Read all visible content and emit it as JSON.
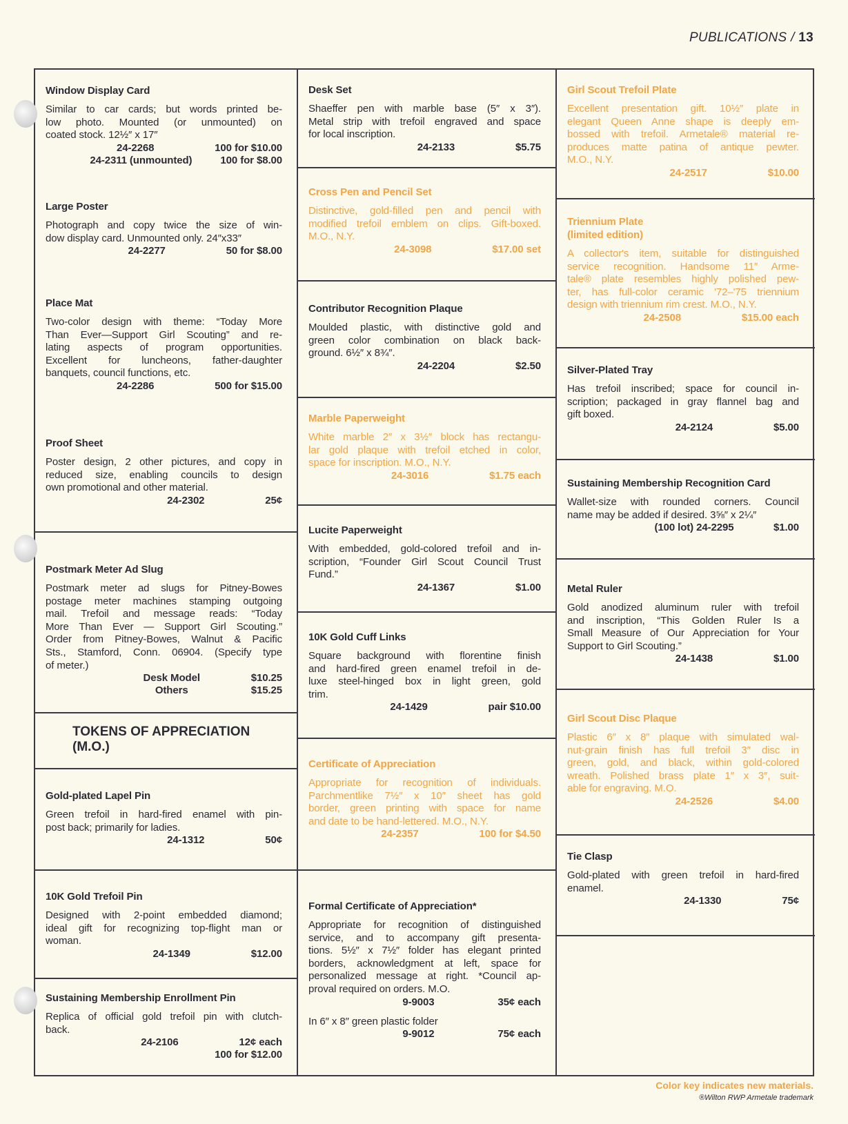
{
  "header": {
    "section": "PUBLICATIONS /",
    "page_number": "13"
  },
  "colors": {
    "text": "#2b2b36",
    "new_material": "#f0a646",
    "background": "#fbf8ec"
  },
  "tokens_heading": "TOKENS OF APPRECIATION\n(M.O.)",
  "columns": [
    [
      {
        "title": "Window Display Card",
        "new": false,
        "lines": [
          "Similar to car cards; but words printed be-",
          "low photo. Mounted (or unmounted) on",
          "coated stock. 12½″ x 17″"
        ],
        "prices": [
          {
            "code": "24-2268",
            "price": "100 for $10.00"
          },
          {
            "code": "24-2311 (unmounted)",
            "price": "100 for $8.00"
          }
        ]
      },
      {
        "title": "Large Poster",
        "new": false,
        "lines": [
          "Photograph and copy twice the size of win-",
          "dow display card. Unmounted only. 24″x33″"
        ],
        "prices": [
          {
            "code": "24-2277",
            "price": "50 for $8.00"
          }
        ]
      },
      {
        "title": "Place Mat",
        "new": false,
        "lines": [
          "Two-color design with theme: “Today More",
          "Than Ever—Support Girl Scouting” and re-",
          "lating aspects of program opportunities.",
          "Excellent for luncheons, father-daughter",
          "banquets, council functions, etc."
        ],
        "prices": [
          {
            "code": "24-2286",
            "price": "500 for $15.00"
          }
        ]
      },
      {
        "title": "Proof Sheet",
        "new": false,
        "lines": [
          "Poster design, 2 other pictures, and copy in",
          "reduced size, enabling councils to design",
          "own promotional and other material."
        ],
        "prices": [
          {
            "code": "24-2302",
            "price": "25¢"
          }
        ]
      },
      {
        "title": "Postmark Meter Ad Slug",
        "new": false,
        "lines": [
          "Postmark meter ad slugs for Pitney-Bowes",
          "postage meter machines stamping outgoing",
          "mail. Trefoil and message reads: “Today",
          "More Than Ever — Support Girl Scouting.”",
          "Order from Pitney-Bowes, Walnut & Pacific",
          "Sts., Stamford, Conn. 06904. (Specify type",
          "of meter.)"
        ],
        "prices": [
          {
            "code": "Desk Model",
            "price": "$10.25"
          },
          {
            "code": "Others",
            "price": "$15.25"
          }
        ]
      },
      {
        "title": "Gold-plated Lapel Pin",
        "new": false,
        "lines": [
          "Green trefoil in hard-fired enamel with pin-",
          "post back; primarily for ladies."
        ],
        "prices": [
          {
            "code": "24-1312",
            "price": "50¢"
          }
        ]
      },
      {
        "title": "10K Gold Trefoil Pin",
        "new": false,
        "lines": [
          "Designed with 2-point embedded diamond;",
          "ideal gift for recognizing top-flight man or",
          "woman."
        ],
        "prices": [
          {
            "code": "24-1349",
            "price": "$12.00"
          }
        ]
      },
      {
        "title": "Sustaining Membership Enrollment Pin",
        "new": false,
        "lines": [
          "Replica of official gold trefoil pin with clutch-",
          "back."
        ],
        "prices": [
          {
            "code": "24-2106",
            "price": "12¢ each"
          },
          {
            "code": "",
            "price": "100 for $12.00"
          }
        ]
      }
    ],
    [
      {
        "title": "Desk Set",
        "new": false,
        "lines": [
          "Shaeffer pen with marble base (5″ x 3″).",
          "Metal strip with trefoil engraved and space",
          "for local inscription."
        ],
        "prices": [
          {
            "code": "24-2133",
            "price": "$5.75"
          }
        ]
      },
      {
        "title": "Cross Pen and Pencil Set",
        "new": true,
        "lines": [
          "Distinctive, gold-filled pen and pencil with",
          "modified trefoil emblem on clips. Gift-boxed.",
          "M.O., N.Y."
        ],
        "prices": [
          {
            "code": "24-3098",
            "price": "$17.00 set"
          }
        ]
      },
      {
        "title": "Contributor Recognition Plaque",
        "new": false,
        "lines": [
          "Moulded plastic, with distinctive gold and",
          "green color combination on black back-",
          "ground. 6½″ x 8¾″."
        ],
        "prices": [
          {
            "code": "24-2204",
            "price": "$2.50"
          }
        ]
      },
      {
        "title": "Marble Paperweight",
        "new": true,
        "lines": [
          "White marble 2″ x 3½″ block has rectangu-",
          "lar gold plaque with trefoil etched in color,",
          "space for inscription. M.O., N.Y."
        ],
        "prices": [
          {
            "code": "24-3016",
            "price": "$1.75 each"
          }
        ]
      },
      {
        "title": "Lucite Paperweight",
        "new": false,
        "lines": [
          "With embedded, gold-colored trefoil and in-",
          "scription, “Founder Girl Scout Council Trust",
          "Fund.”"
        ],
        "prices": [
          {
            "code": "24-1367",
            "price": "$1.00"
          }
        ]
      },
      {
        "title": "10K Gold Cuff Links",
        "new": false,
        "lines": [
          "Square background with florentine finish",
          "and hard-fired green enamel trefoil in de-",
          "luxe steel-hinged box in light green, gold",
          "trim."
        ],
        "prices": [
          {
            "code": "24-1429",
            "price": "pair $10.00"
          }
        ]
      },
      {
        "title": "Certificate of Appreciation",
        "new": true,
        "lines": [
          "Appropriate for recognition of individuals.",
          "Parchmentlike 7½″ x 10″ sheet has gold",
          "border, green printing with space for name",
          "and date to be hand-lettered. M.O., N.Y."
        ],
        "prices": [
          {
            "code": "24-2357",
            "price": "100 for $4.50"
          }
        ]
      },
      {
        "title": "Formal Certificate of Appreciation*",
        "new": false,
        "lines": [
          "Appropriate for recognition of distinguished",
          "service, and to accompany gift presenta-",
          "tions. 5½″ x 7½″ folder has elegant printed",
          "borders, acknowledgment at left, space for",
          "personalized message at right. *Council ap-",
          "proval required on orders. M.O."
        ],
        "prices": [
          {
            "code": "9-9003",
            "price": "35¢ each"
          }
        ],
        "extra": {
          "lines": [
            "In 6″ x 8″ green plastic folder"
          ],
          "prices": [
            {
              "code": "9-9012",
              "price": "75¢ each"
            }
          ]
        }
      }
    ],
    [
      {
        "title": "Girl Scout Trefoil Plate",
        "new": true,
        "lines": [
          "Excellent presentation gift. 10½″ plate in",
          "elegant Queen Anne shape is deeply em-",
          "bossed with trefoil. Armetale® material re-",
          "produces matte patina of antique pewter.",
          "M.O., N.Y."
        ],
        "prices": [
          {
            "code": "24-2517",
            "price": "$10.00"
          }
        ]
      },
      {
        "title": "Triennium Plate\n(limited edition)",
        "new": true,
        "lines": [
          "A collector's item, suitable for distinguished",
          "service recognition. Handsome 11″ Arme-",
          "tale® plate resembles highly polished pew-",
          "ter, has full-color ceramic '72–'75 triennium",
          "design with triennium rim crest. M.O., N.Y."
        ],
        "prices": [
          {
            "code": "24-2508",
            "price": "$15.00 each"
          }
        ]
      },
      {
        "title": "Silver-Plated Tray",
        "new": false,
        "lines": [
          "Has trefoil inscribed; space for council in-",
          "scription; packaged in gray flannel bag and",
          "gift boxed."
        ],
        "prices": [
          {
            "code": "24-2124",
            "price": "$5.00"
          }
        ]
      },
      {
        "title": "Sustaining Membership Recognition Card",
        "new": false,
        "lines": [
          "Wallet-size with rounded corners. Council",
          "name may be added if desired. 3⅝″ x 2¼″"
        ],
        "prices": [
          {
            "code": "(100 lot) 24-2295",
            "price": "$1.00"
          }
        ]
      },
      {
        "title": "Metal Ruler",
        "new": false,
        "lines": [
          "Gold anodized aluminum ruler with trefoil",
          "and inscription, “This Golden Ruler Is a",
          "Small Measure of Our Appreciation for Your",
          "Support to Girl Scouting.”"
        ],
        "prices": [
          {
            "code": "24-1438",
            "price": "$1.00"
          }
        ]
      },
      {
        "title": "Girl Scout Disc Plaque",
        "new": true,
        "lines": [
          "Plastic 6″ x 8″ plaque with simulated wal-",
          "nut-grain finish has full trefoil 3″ disc in",
          "green, gold, and black, within gold-colored",
          "wreath. Polished brass plate 1″ x 3″, suit-",
          "able for engraving. M.O."
        ],
        "prices": [
          {
            "code": "24-2526",
            "price": "$4.00"
          }
        ]
      },
      {
        "title": "Tie Clasp",
        "new": false,
        "lines": [
          "Gold-plated with green trefoil in hard-fired",
          "enamel."
        ],
        "prices": [
          {
            "code": "24-1330",
            "price": "75¢"
          }
        ]
      }
    ]
  ],
  "footer": {
    "color_key": "Color key indicates new materials.",
    "trademark": "®Wilton RWP Armetale trademark"
  }
}
